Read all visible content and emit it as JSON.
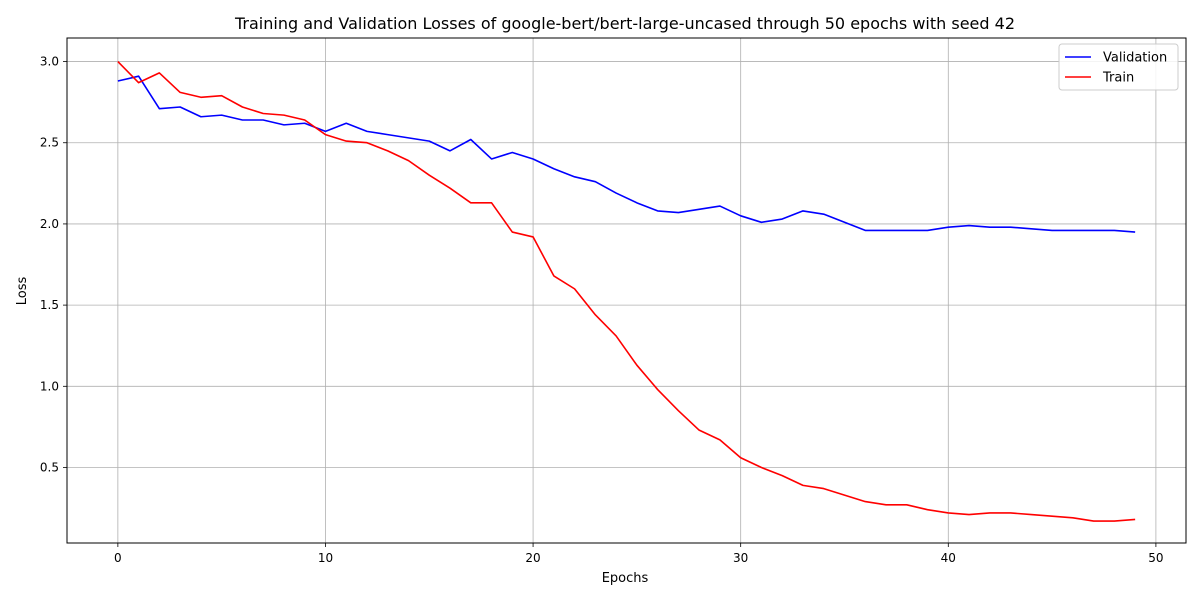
{
  "chart_data": {
    "type": "line",
    "title": "Training and Validation Losses of google-bert/bert-large-uncased through 50 epochs with seed 42",
    "xlabel": "Epochs",
    "ylabel": "Loss",
    "xlim": [
      -2.45,
      51.45
    ],
    "ylim": [
      0.035,
      3.145
    ],
    "xticks": [
      0,
      10,
      20,
      30,
      40,
      50
    ],
    "yticks": [
      0.5,
      1.0,
      1.5,
      2.0,
      2.5,
      3.0
    ],
    "xtick_labels": [
      "0",
      "10",
      "20",
      "30",
      "40",
      "50"
    ],
    "ytick_labels": [
      "0.5",
      "1.0",
      "1.5",
      "2.0",
      "2.5",
      "3.0"
    ],
    "grid": true,
    "legend_position": "top-right",
    "x": [
      0,
      1,
      2,
      3,
      4,
      5,
      6,
      7,
      8,
      9,
      10,
      11,
      12,
      13,
      14,
      15,
      16,
      17,
      18,
      19,
      20,
      21,
      22,
      23,
      24,
      25,
      26,
      27,
      28,
      29,
      30,
      31,
      32,
      33,
      34,
      35,
      36,
      37,
      38,
      39,
      40,
      41,
      42,
      43,
      44,
      45,
      46,
      47,
      48,
      49
    ],
    "series": [
      {
        "name": "Validation",
        "color": "#0000ff",
        "values": [
          2.88,
          2.91,
          2.71,
          2.72,
          2.66,
          2.67,
          2.64,
          2.64,
          2.61,
          2.62,
          2.57,
          2.62,
          2.57,
          2.55,
          2.53,
          2.51,
          2.45,
          2.52,
          2.4,
          2.44,
          2.4,
          2.34,
          2.29,
          2.26,
          2.19,
          2.13,
          2.08,
          2.07,
          2.09,
          2.11,
          2.05,
          2.01,
          2.03,
          2.08,
          2.06,
          2.01,
          1.96,
          1.96,
          1.96,
          1.96,
          1.98,
          1.99,
          1.98,
          1.98,
          1.97,
          1.96,
          1.96,
          1.96,
          1.96,
          1.95
        ]
      },
      {
        "name": "Train",
        "color": "#ff0000",
        "values": [
          3.0,
          2.87,
          2.93,
          2.81,
          2.78,
          2.79,
          2.72,
          2.68,
          2.67,
          2.64,
          2.55,
          2.51,
          2.5,
          2.45,
          2.39,
          2.3,
          2.22,
          2.13,
          2.13,
          1.95,
          1.92,
          1.68,
          1.6,
          1.44,
          1.31,
          1.13,
          0.98,
          0.85,
          0.73,
          0.67,
          0.56,
          0.5,
          0.45,
          0.39,
          0.37,
          0.33,
          0.29,
          0.27,
          0.27,
          0.24,
          0.22,
          0.21,
          0.22,
          0.22,
          0.21,
          0.2,
          0.19,
          0.17,
          0.17,
          0.18
        ]
      }
    ]
  }
}
